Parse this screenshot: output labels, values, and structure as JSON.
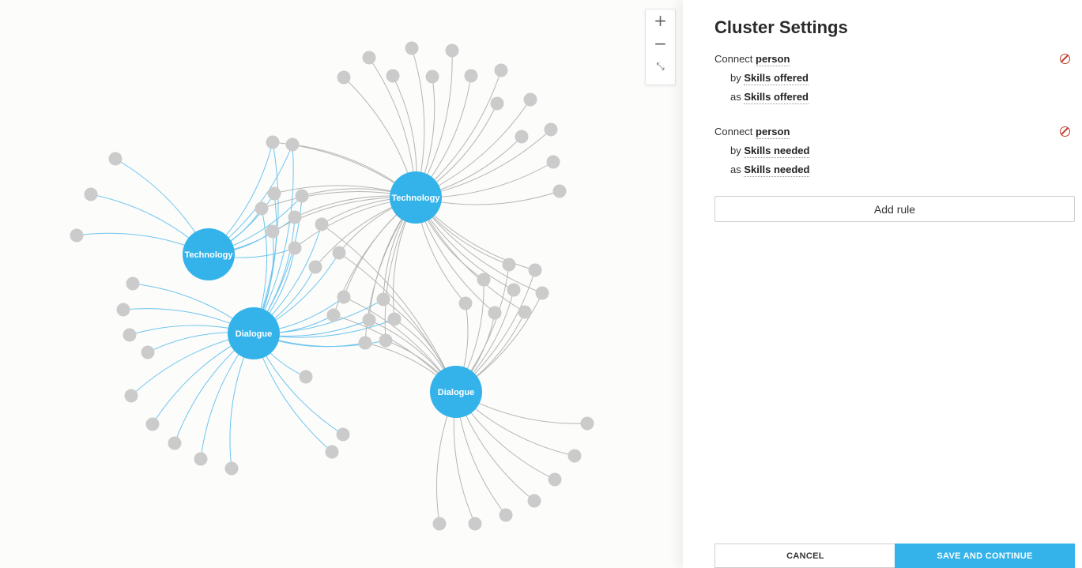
{
  "graph": {
    "clusters": [
      {
        "label": "Technology"
      },
      {
        "label": "Technology"
      },
      {
        "label": "Dialogue"
      },
      {
        "label": "Dialogue"
      }
    ]
  },
  "zoom": {
    "zoom_in_label": "+",
    "zoom_out_label": "−",
    "reset_label": "⤡"
  },
  "panel": {
    "title": "Cluster Settings",
    "rules": [
      {
        "connect_prefix": "Connect",
        "entity": "person",
        "by_prefix": "by",
        "by_value": "Skills offered",
        "as_prefix": "as",
        "as_value": "Skills offered"
      },
      {
        "connect_prefix": "Connect",
        "entity": "person",
        "by_prefix": "by",
        "by_value": "Skills needed",
        "as_prefix": "as",
        "as_value": "Skills needed"
      }
    ],
    "add_rule_label": "Add rule",
    "cancel_label": "CANCEL",
    "save_label": "SAVE AND CONTINUE"
  },
  "colors": {
    "accent": "#34b3ea",
    "leaf": "#cbcbcb",
    "edge_grey": "#b5b5b5",
    "edge_blue": "#6ec5ef",
    "remove": "#c0392b"
  }
}
